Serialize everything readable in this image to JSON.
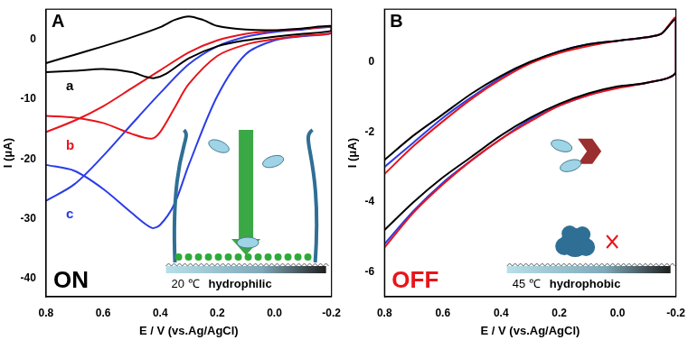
{
  "chart_data": [
    {
      "type": "line",
      "panel_label": "A",
      "state": {
        "text": "ON",
        "color": "#000000"
      },
      "inset_labels": [
        "20 ℃",
        "hydrophilic"
      ],
      "x_label": "E / V (vs.Ag/AgCl)",
      "y_label": "I (μA)",
      "xlim": [
        0.8,
        -0.2
      ],
      "xticks": [
        0.8,
        0.6,
        0.4,
        0.2,
        {
          "value": 0,
          "label": "0.0"
        },
        -0.2
      ],
      "ylim": [
        -43,
        5
      ],
      "yticks": [
        0,
        -10,
        -20,
        -30,
        -40
      ],
      "grid": false,
      "series": [
        {
          "name": "a",
          "color": "#000000",
          "x": [
            0.8,
            0.7,
            0.6,
            0.5,
            0.45,
            0.42,
            0.38,
            0.3,
            0.2,
            0.1,
            0.0,
            -0.1,
            -0.2,
            -0.2,
            -0.1,
            0.0,
            0.1,
            0.2,
            0.25,
            0.3,
            0.35,
            0.4,
            0.5,
            0.6,
            0.7,
            0.8
          ],
          "values": [
            -5.5,
            -5.3,
            -5.0,
            -5.5,
            -6.3,
            -6.5,
            -5.8,
            -3.2,
            -1.2,
            -0.2,
            0.4,
            0.9,
            1.4,
            2.2,
            1.8,
            1.5,
            1.6,
            2.2,
            3.2,
            3.8,
            3.2,
            2.0,
            0.3,
            -1.2,
            -2.6,
            -4.0
          ]
        },
        {
          "name": "b",
          "color": "#e8141b",
          "x": [
            0.8,
            0.7,
            0.6,
            0.5,
            0.4,
            0.3,
            0.2,
            0.1,
            0.0,
            -0.1,
            -0.2,
            -0.2,
            -0.1,
            0.0,
            0.1,
            0.2,
            0.3,
            0.35,
            0.4,
            0.43,
            0.5,
            0.6,
            0.7,
            0.8
          ],
          "values": [
            -15.5,
            -13.6,
            -11.2,
            -8.2,
            -5.2,
            -2.2,
            -0.2,
            0.9,
            1.4,
            1.7,
            2.0,
            1.0,
            0.6,
            0.0,
            -0.9,
            -2.8,
            -7.5,
            -11.5,
            -15.5,
            -16.6,
            -15.8,
            -14.0,
            -13.1,
            -12.8
          ]
        },
        {
          "name": "c",
          "color": "#2b3de8",
          "x": [
            0.8,
            0.7,
            0.6,
            0.5,
            0.4,
            0.3,
            0.2,
            0.1,
            0.0,
            -0.1,
            -0.2,
            -0.2,
            -0.1,
            0.0,
            0.1,
            0.2,
            0.3,
            0.35,
            0.4,
            0.43,
            0.5,
            0.6,
            0.7,
            0.8
          ],
          "values": [
            -27.0,
            -24.2,
            -19.5,
            -14.2,
            -9.0,
            -4.2,
            -1.2,
            0.4,
            1.2,
            1.6,
            2.0,
            1.0,
            0.5,
            -0.2,
            -2.5,
            -9.5,
            -21.0,
            -27.5,
            -31.0,
            -31.5,
            -29.0,
            -25.0,
            -22.0,
            -21.0
          ]
        }
      ]
    },
    {
      "type": "line",
      "panel_label": "B",
      "state": {
        "text": "OFF",
        "color": "#e8141b"
      },
      "inset_labels": [
        "45 ℃",
        "hydrophobic"
      ],
      "x_label": "E / V (vs.Ag/AgCl)",
      "y_label": "I (μA)",
      "xlim": [
        0.8,
        -0.2
      ],
      "xticks": [
        0.8,
        0.6,
        0.4,
        0.2,
        {
          "value": 0,
          "label": "0.0"
        },
        -0.2
      ],
      "ylim": [
        -6.7,
        1.5
      ],
      "yticks": [
        0,
        -2,
        -4,
        -6
      ],
      "grid": false,
      "series": [
        {
          "color": "#000000",
          "x": [
            0.8,
            0.7,
            0.6,
            0.5,
            0.4,
            0.3,
            0.2,
            0.1,
            0.0,
            -0.1,
            -0.2,
            -0.2,
            -0.15,
            -0.1,
            0.0,
            0.1,
            0.2,
            0.3,
            0.4,
            0.5,
            0.6,
            0.7,
            0.8
          ],
          "values": [
            -4.8,
            -4.0,
            -3.3,
            -2.7,
            -2.1,
            -1.6,
            -1.2,
            -0.9,
            -0.7,
            -0.6,
            -0.3,
            1.2,
            0.8,
            0.7,
            0.6,
            0.5,
            0.3,
            0.0,
            -0.4,
            -0.9,
            -1.5,
            -2.1,
            -2.8
          ]
        },
        {
          "color": "#e8141b",
          "x": [
            0.8,
            0.7,
            0.6,
            0.5,
            0.4,
            0.3,
            0.2,
            0.1,
            0.0,
            -0.1,
            -0.2,
            -0.2,
            -0.15,
            -0.1,
            0.0,
            0.1,
            0.2,
            0.3,
            0.4,
            0.5,
            0.6,
            0.7,
            0.8
          ],
          "values": [
            -5.3,
            -4.3,
            -3.5,
            -2.8,
            -2.2,
            -1.7,
            -1.25,
            -0.95,
            -0.75,
            -0.6,
            -0.3,
            1.25,
            0.8,
            0.7,
            0.6,
            0.45,
            0.25,
            -0.05,
            -0.5,
            -1.05,
            -1.7,
            -2.4,
            -3.2
          ]
        },
        {
          "color": "#2b3de8",
          "x": [
            0.8,
            0.7,
            0.6,
            0.5,
            0.4,
            0.3,
            0.2,
            0.1,
            0.0,
            -0.1,
            -0.2,
            -0.2,
            -0.15,
            -0.1,
            0.0,
            0.1,
            0.2,
            0.3,
            0.4,
            0.5,
            0.6,
            0.7,
            0.8
          ],
          "values": [
            -5.2,
            -4.25,
            -3.45,
            -2.8,
            -2.2,
            -1.65,
            -1.25,
            -0.95,
            -0.72,
            -0.6,
            -0.3,
            1.2,
            0.8,
            0.7,
            0.6,
            0.5,
            0.3,
            -0.02,
            -0.45,
            -1.0,
            -1.6,
            -2.3,
            -3.0
          ]
        }
      ]
    }
  ]
}
